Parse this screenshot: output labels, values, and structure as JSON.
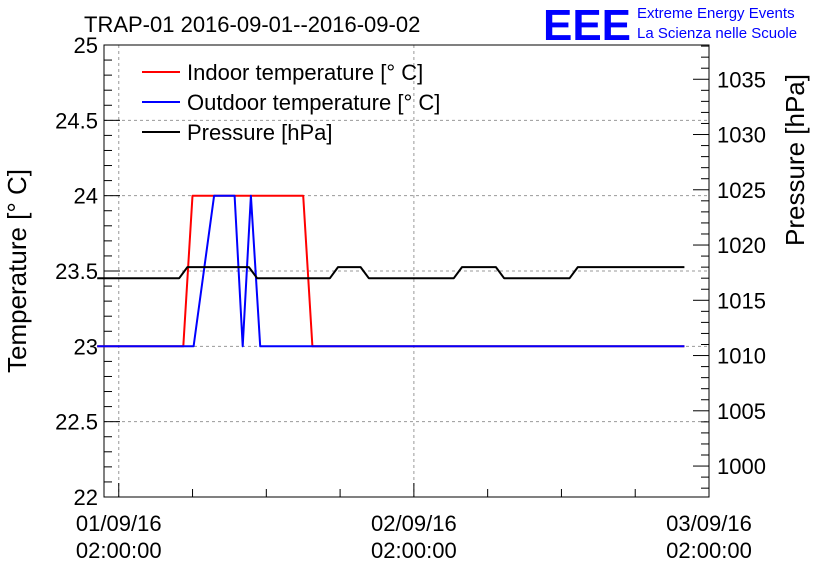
{
  "chart_data": {
    "type": "line",
    "title": "TRAP-01 2016-09-01--2016-09-02",
    "ylabel": "Temperature [° C]",
    "ylabel_right": "Pressure [hPa]",
    "ylim": [
      22,
      25
    ],
    "ylim_right": [
      997.2,
      1038.1
    ],
    "xlim": [
      "2016-09-01 00:48:00",
      "2016-09-03 02:00:00"
    ],
    "grid": true,
    "legend_position": "top-left",
    "x_ticks": [
      {
        "datetime": "2016-09-01 02:00:00",
        "date": "01/09/16",
        "time": "02:00:00"
      },
      {
        "datetime": "2016-09-02 02:00:00",
        "date": "02/09/16",
        "time": "02:00:00"
      },
      {
        "datetime": "2016-09-03 02:00:00",
        "date": "03/09/16",
        "time": "02:00:00"
      }
    ],
    "y_ticks": [
      "22",
      "22.5",
      "23",
      "23.5",
      "24",
      "24.5",
      "25"
    ],
    "y_ticks_right": [
      "1000",
      "1005",
      "1010",
      "1015",
      "1020",
      "1025",
      "1030",
      "1035"
    ],
    "series": [
      {
        "name": "Indoor temperature [° C]",
        "color": "#ff0000",
        "axis": "left",
        "points": [
          [
            "2016-09-01 00:15:00",
            23.0
          ],
          [
            "2016-09-01 07:15:00",
            23.0
          ],
          [
            "2016-09-01 08:00:00",
            24.0
          ],
          [
            "2016-09-01 17:00:00",
            24.0
          ],
          [
            "2016-09-01 17:45:00",
            23.0
          ],
          [
            "2016-09-03 00:00:00",
            23.0
          ]
        ]
      },
      {
        "name": "Outdoor temperature [° C]",
        "color": "#0000ff",
        "axis": "left",
        "points": [
          [
            "2016-09-01 00:15:00",
            23.0
          ],
          [
            "2016-09-01 08:05:00",
            23.0
          ],
          [
            "2016-09-01 09:45:00",
            24.0
          ],
          [
            "2016-09-01 11:25:00",
            24.0
          ],
          [
            "2016-09-01 12:05:00",
            23.0
          ],
          [
            "2016-09-01 12:45:00",
            24.0
          ],
          [
            "2016-09-01 13:30:00",
            23.0
          ],
          [
            "2016-09-03 00:00:00",
            23.0
          ]
        ]
      },
      {
        "name": "Pressure [hPa]",
        "color": "#000000",
        "axis": "right",
        "points": [
          [
            "2016-09-01 00:15:00",
            1017.0
          ],
          [
            "2016-09-01 06:55:00",
            1017.0
          ],
          [
            "2016-09-01 07:35:00",
            1018.0
          ],
          [
            "2016-09-01 12:35:00",
            1018.0
          ],
          [
            "2016-09-01 13:15:00",
            1017.0
          ],
          [
            "2016-09-01 19:10:00",
            1017.0
          ],
          [
            "2016-09-01 19:50:00",
            1018.0
          ],
          [
            "2016-09-01 21:40:00",
            1018.0
          ],
          [
            "2016-09-01 22:20:00",
            1017.0
          ],
          [
            "2016-09-02 05:15:00",
            1017.0
          ],
          [
            "2016-09-02 05:55:00",
            1018.0
          ],
          [
            "2016-09-02 08:40:00",
            1018.0
          ],
          [
            "2016-09-02 09:20:00",
            1017.0
          ],
          [
            "2016-09-02 14:40:00",
            1017.0
          ],
          [
            "2016-09-02 15:20:00",
            1018.0
          ],
          [
            "2016-09-03 00:00:00",
            1018.0
          ]
        ]
      }
    ]
  },
  "logo": {
    "mark": "EEE",
    "line1": "Extreme Energy Events",
    "line2": "La Scienza nelle Scuole",
    "color": "#0000ff"
  }
}
